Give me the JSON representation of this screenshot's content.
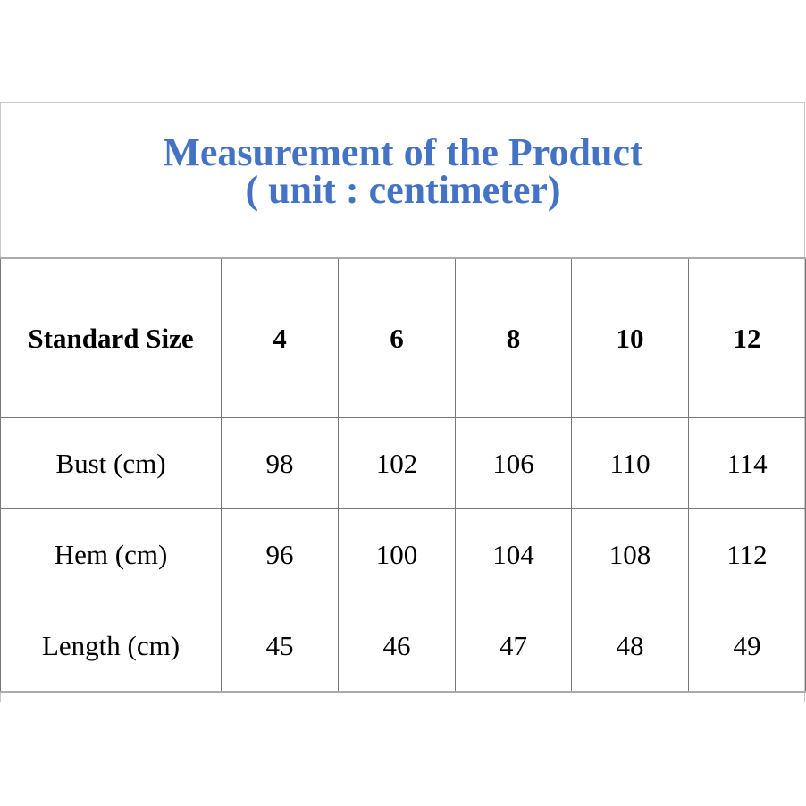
{
  "title": {
    "line1": "Measurement of the Product",
    "line2": "( unit : centimeter)",
    "color": "#4472C4"
  },
  "table": {
    "header": [
      "Standard Size",
      "4",
      "6",
      "8",
      "10",
      "12"
    ],
    "rows": [
      [
        "Bust (cm)",
        "98",
        "102",
        "106",
        "110",
        "114"
      ],
      [
        "Hem (cm)",
        "96",
        "100",
        "104",
        "108",
        "112"
      ],
      [
        "Length (cm)",
        "45",
        "46",
        "47",
        "48",
        "49"
      ]
    ]
  }
}
